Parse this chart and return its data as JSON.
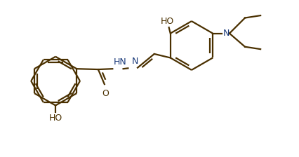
{
  "bg_color": "#ffffff",
  "line_color": "#4a3000",
  "n_color": "#1a3a7a",
  "line_width": 1.6,
  "fig_width": 4.26,
  "fig_height": 2.24,
  "dpi": 100,
  "xlim": [
    0,
    10
  ],
  "ylim": [
    0,
    5.27
  ]
}
